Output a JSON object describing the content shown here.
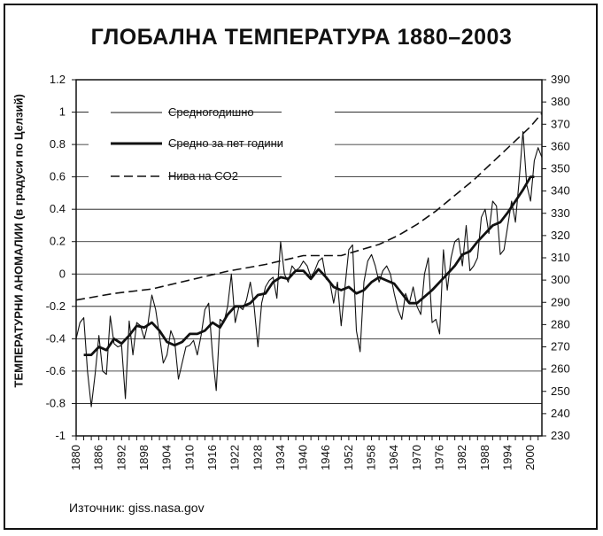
{
  "title": "ГЛОБАЛНА ТЕМПЕРАТУРА 1880–2003",
  "source": "Източник: giss.nasa.gov",
  "chart_data": {
    "type": "line",
    "title": "ГЛОБАЛНА ТЕМПЕРАТУРА 1880–2003",
    "ylabel": "ТЕМПЕРАТУРНИ АНОМАЛИИ (в градуси по Целзий)",
    "xlabel": "",
    "xlim": [
      1880,
      2003
    ],
    "ylim": [
      -1,
      1.2
    ],
    "y2lim": [
      230,
      390
    ],
    "grid": true,
    "legend_position": "top-left",
    "x_ticks": [
      "1880",
      "1886",
      "1892",
      "1898",
      "1904",
      "1910",
      "1916",
      "1922",
      "1928",
      "1934",
      "1940",
      "1946",
      "1952",
      "1958",
      "1964",
      "1970",
      "1976",
      "1982",
      "1988",
      "1994",
      "2000"
    ],
    "y_ticks": [
      "1.2",
      "1",
      "0.8",
      "0.6",
      "0.4",
      "0.2",
      "0",
      "-0.2",
      "-0.4",
      "-0.6",
      "-0.8",
      "-1"
    ],
    "y2_ticks": [
      "390",
      "380",
      "370",
      "360",
      "350",
      "340",
      "330",
      "320",
      "310",
      "300",
      "290",
      "280",
      "270",
      "260",
      "250",
      "240",
      "230"
    ],
    "series": [
      {
        "name": "Средногодишно",
        "axis": "left",
        "x": [
          1880,
          1881,
          1882,
          1883,
          1884,
          1885,
          1886,
          1887,
          1888,
          1889,
          1890,
          1891,
          1892,
          1893,
          1894,
          1895,
          1896,
          1897,
          1898,
          1899,
          1900,
          1901,
          1902,
          1903,
          1904,
          1905,
          1906,
          1907,
          1908,
          1909,
          1910,
          1911,
          1912,
          1913,
          1914,
          1915,
          1916,
          1917,
          1918,
          1919,
          1920,
          1921,
          1922,
          1923,
          1924,
          1925,
          1926,
          1927,
          1928,
          1929,
          1930,
          1931,
          1932,
          1933,
          1934,
          1935,
          1936,
          1937,
          1938,
          1939,
          1940,
          1941,
          1942,
          1943,
          1944,
          1945,
          1946,
          1947,
          1948,
          1949,
          1950,
          1951,
          1952,
          1953,
          1954,
          1955,
          1956,
          1957,
          1958,
          1959,
          1960,
          1961,
          1962,
          1963,
          1964,
          1965,
          1966,
          1967,
          1968,
          1969,
          1970,
          1971,
          1972,
          1973,
          1974,
          1975,
          1976,
          1977,
          1978,
          1979,
          1980,
          1981,
          1982,
          1983,
          1984,
          1985,
          1986,
          1987,
          1988,
          1989,
          1990,
          1991,
          1992,
          1993,
          1994,
          1995,
          1996,
          1997,
          1998,
          1999,
          2000,
          2001,
          2002,
          2003
        ],
        "values": [
          -0.4,
          -0.3,
          -0.27,
          -0.6,
          -0.82,
          -0.62,
          -0.38,
          -0.6,
          -0.62,
          -0.26,
          -0.43,
          -0.45,
          -0.44,
          -0.77,
          -0.29,
          -0.5,
          -0.3,
          -0.32,
          -0.4,
          -0.3,
          -0.13,
          -0.22,
          -0.38,
          -0.55,
          -0.5,
          -0.35,
          -0.41,
          -0.65,
          -0.55,
          -0.45,
          -0.44,
          -0.41,
          -0.5,
          -0.38,
          -0.22,
          -0.18,
          -0.5,
          -0.72,
          -0.28,
          -0.3,
          -0.2,
          0.0,
          -0.3,
          -0.2,
          -0.22,
          -0.16,
          -0.05,
          -0.2,
          -0.45,
          -0.18,
          -0.08,
          -0.04,
          -0.02,
          -0.15,
          0.2,
          0.0,
          -0.05,
          0.05,
          0.02,
          0.04,
          0.08,
          0.05,
          -0.02,
          0.02,
          0.08,
          0.1,
          -0.03,
          -0.05,
          -0.18,
          -0.05,
          -0.32,
          -0.08,
          0.15,
          0.18,
          -0.35,
          -0.48,
          -0.05,
          0.08,
          0.12,
          0.05,
          -0.05,
          0.02,
          0.05,
          0.0,
          -0.12,
          -0.22,
          -0.28,
          -0.12,
          -0.18,
          -0.08,
          -0.2,
          -0.25,
          0.0,
          0.1,
          -0.3,
          -0.28,
          -0.37,
          0.15,
          -0.1,
          0.1,
          0.2,
          0.22,
          0.05,
          0.3,
          0.02,
          0.05,
          0.1,
          0.35,
          0.4,
          0.25,
          0.45,
          0.42,
          0.12,
          0.15,
          0.3,
          0.45,
          0.32,
          0.58,
          0.88,
          0.55,
          0.45,
          0.7,
          0.78,
          0.72
        ]
      },
      {
        "name": "Средно за пет години",
        "axis": "left",
        "x": [
          1882,
          1884,
          1886,
          1888,
          1890,
          1892,
          1894,
          1896,
          1898,
          1900,
          1902,
          1904,
          1906,
          1908,
          1910,
          1912,
          1914,
          1916,
          1918,
          1920,
          1922,
          1924,
          1926,
          1928,
          1930,
          1932,
          1934,
          1936,
          1938,
          1940,
          1942,
          1944,
          1946,
          1948,
          1950,
          1952,
          1954,
          1956,
          1958,
          1960,
          1962,
          1964,
          1966,
          1968,
          1970,
          1972,
          1974,
          1976,
          1978,
          1980,
          1982,
          1984,
          1986,
          1988,
          1990,
          1992,
          1994,
          1996,
          1998,
          2000,
          2001
        ],
        "values": [
          -0.5,
          -0.5,
          -0.45,
          -0.47,
          -0.4,
          -0.43,
          -0.38,
          -0.32,
          -0.33,
          -0.3,
          -0.35,
          -0.42,
          -0.44,
          -0.42,
          -0.37,
          -0.37,
          -0.35,
          -0.3,
          -0.33,
          -0.25,
          -0.2,
          -0.2,
          -0.18,
          -0.13,
          -0.12,
          -0.05,
          -0.02,
          -0.03,
          0.02,
          0.02,
          -0.03,
          0.03,
          -0.02,
          -0.08,
          -0.1,
          -0.08,
          -0.12,
          -0.1,
          -0.05,
          -0.02,
          -0.04,
          -0.06,
          -0.12,
          -0.18,
          -0.18,
          -0.14,
          -0.1,
          -0.05,
          0.0,
          0.05,
          0.12,
          0.14,
          0.2,
          0.25,
          0.3,
          0.32,
          0.38,
          0.45,
          0.52,
          0.6,
          0.6
        ]
      },
      {
        "name": "Нива на CO2",
        "axis": "right",
        "x": [
          1880,
          1890,
          1900,
          1910,
          1920,
          1930,
          1940,
          1950,
          1960,
          1965,
          1970,
          1975,
          1980,
          1985,
          1990,
          1995,
          2000,
          2003
        ],
        "values": [
          291,
          294,
          296,
          300,
          304,
          307,
          311,
          311,
          316,
          320,
          325,
          331,
          338,
          345,
          353,
          361,
          369,
          375
        ]
      }
    ]
  }
}
